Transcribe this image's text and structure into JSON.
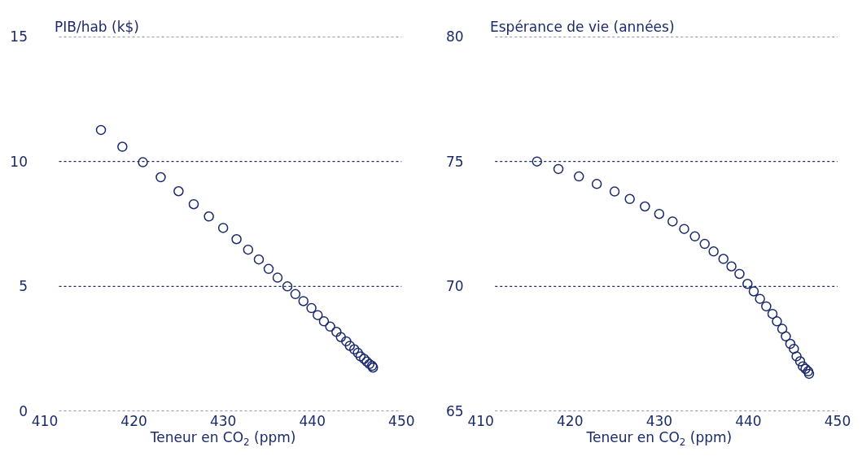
{
  "chart_data": [
    {
      "type": "scatter",
      "ylabel": "PIB/hab (k$)",
      "xlabel": "Teneur en CO$_{2}$ (ppm)",
      "x": [
        416.3,
        418.7,
        421.0,
        423.0,
        425.0,
        426.7,
        428.4,
        430.0,
        431.5,
        432.8,
        434.0,
        435.1,
        436.1,
        437.2,
        438.1,
        439.0,
        439.9,
        440.6,
        441.3,
        442.0,
        442.7,
        443.2,
        443.8,
        444.2,
        444.7,
        445.1,
        445.4,
        445.8,
        446.1,
        446.4,
        446.7,
        446.8
      ],
      "values": [
        11.26,
        10.59,
        9.97,
        9.37,
        8.81,
        8.29,
        7.8,
        7.34,
        6.89,
        6.47,
        6.08,
        5.7,
        5.35,
        5.0,
        4.69,
        4.41,
        4.13,
        3.85,
        3.6,
        3.39,
        3.18,
        2.97,
        2.8,
        2.62,
        2.48,
        2.34,
        2.2,
        2.1,
        1.99,
        1.89,
        1.82,
        1.75
      ],
      "color": "#1b2a6b",
      "marker": "circle",
      "grid": "y",
      "xlim": [
        410,
        450
      ],
      "xticks": [
        410,
        420,
        430,
        440,
        450
      ],
      "ylim": [
        0,
        15
      ],
      "yticks": [
        0,
        5,
        10,
        15
      ]
    },
    {
      "type": "scatter",
      "ylabel": "Espérance de vie (années)",
      "xlabel": "Teneur en CO$_{2}$ (ppm)",
      "x": [
        416.3,
        418.7,
        421.0,
        423.0,
        425.0,
        426.7,
        428.4,
        430.0,
        431.5,
        432.8,
        434.0,
        435.1,
        436.1,
        437.2,
        438.1,
        439.0,
        439.9,
        440.6,
        441.3,
        442.0,
        442.7,
        443.2,
        443.8,
        444.2,
        444.7,
        445.1,
        445.4,
        445.8,
        446.1,
        446.4,
        446.7,
        446.8
      ],
      "values": [
        75.0,
        74.7,
        74.4,
        74.1,
        73.8,
        73.5,
        73.2,
        72.9,
        72.6,
        72.3,
        72.0,
        71.7,
        71.4,
        71.1,
        70.8,
        70.5,
        70.1,
        69.8,
        69.5,
        69.2,
        68.9,
        68.6,
        68.3,
        68.0,
        67.7,
        67.5,
        67.2,
        67.0,
        66.8,
        66.7,
        66.6,
        66.5
      ],
      "color": "#1b2a6b",
      "marker": "circle",
      "grid": "y",
      "xlim": [
        410,
        450
      ],
      "xticks": [
        410,
        420,
        430,
        440,
        450
      ],
      "ylim": [
        65,
        80
      ],
      "yticks": [
        65,
        70,
        75,
        80
      ]
    }
  ]
}
